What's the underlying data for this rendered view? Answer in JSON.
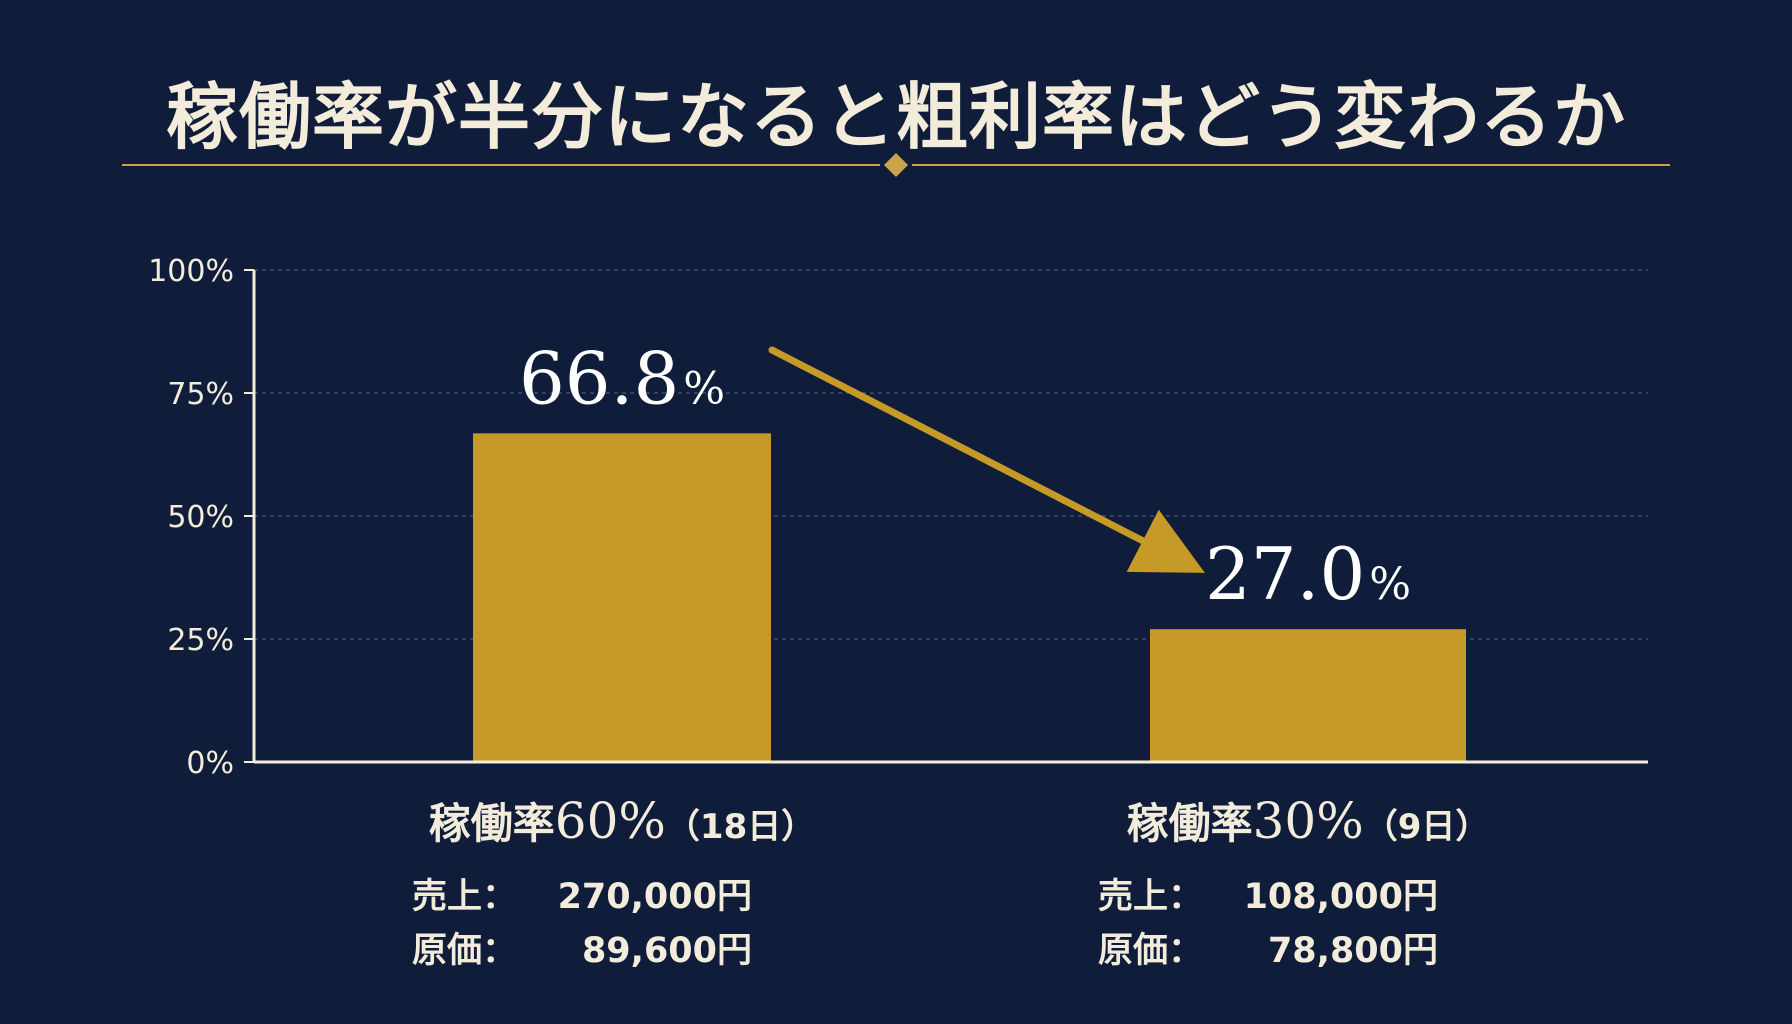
{
  "title": "稼働率が半分になると粗利率はどう変わるか",
  "chart_data": {
    "type": "bar",
    "ylim": [
      0,
      100
    ],
    "yticks": [
      0,
      25,
      50,
      75,
      100
    ],
    "ytick_labels": [
      "0%",
      "25%",
      "50%",
      "75%",
      "100%"
    ],
    "grid": true,
    "categories": [
      {
        "name": "稼働率",
        "pct": "60%",
        "days": "（18日）"
      },
      {
        "name": "稼働率",
        "pct": "30%",
        "days": "（9日）"
      }
    ],
    "values": [
      66.8,
      27.0
    ],
    "value_labels": [
      {
        "num": "66.8",
        "unit": "%"
      },
      {
        "num": "27.0",
        "unit": "%"
      }
    ],
    "annotation": "arrow from first bar label to second bar label"
  },
  "details": [
    {
      "sales_label": "売上：",
      "sales": "270,000円",
      "cost_label": "原価：",
      "cost": "89,600円"
    },
    {
      "sales_label": "売上：",
      "sales": "108,000円",
      "cost_label": "原価：",
      "cost": "78,800円"
    }
  ],
  "colors": {
    "background": "#0f1c3a",
    "bar": "#c69a26",
    "gold_line": "#c9a24a",
    "text": "#f3ecdb",
    "arrow": "#c69a26"
  }
}
